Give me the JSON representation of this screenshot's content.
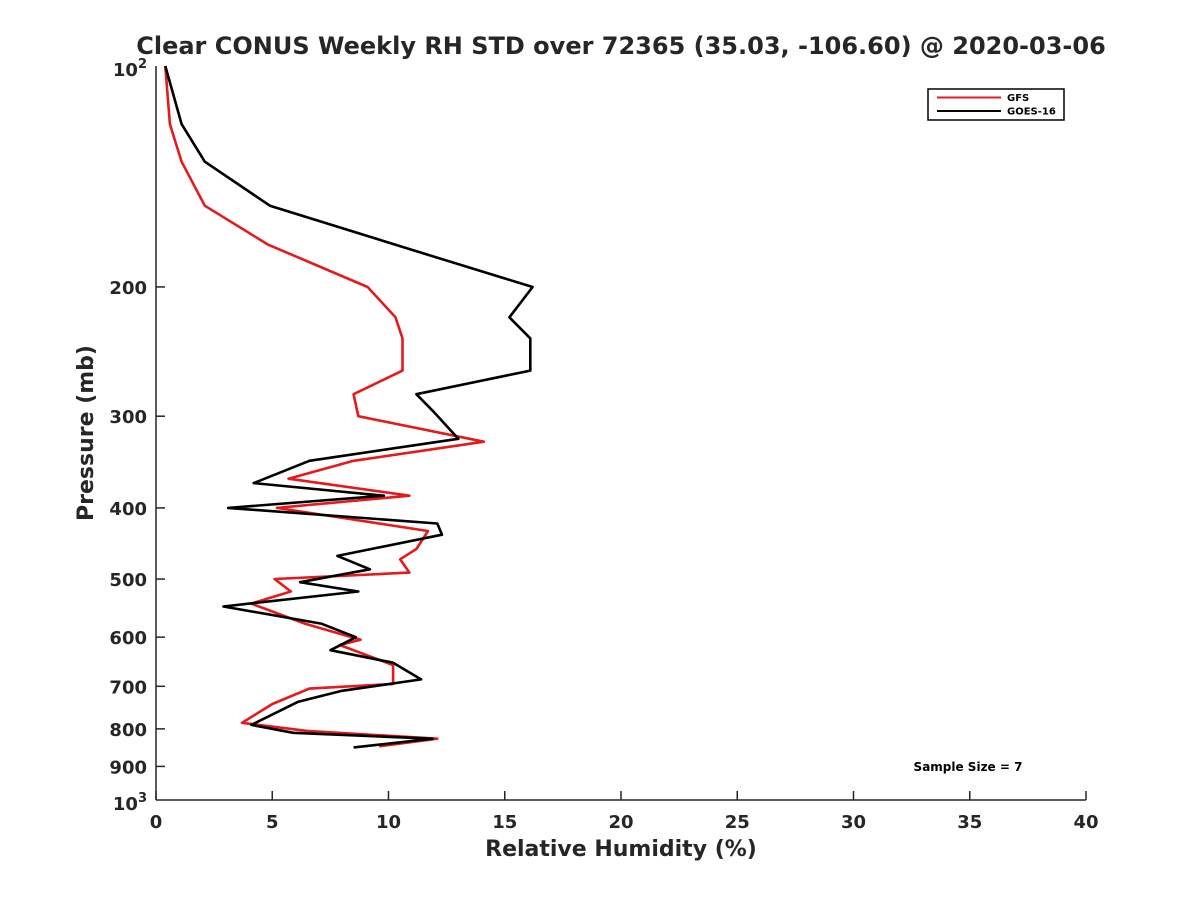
{
  "chart_data": {
    "type": "line",
    "title": "Clear CONUS Weekly RH STD over 72365 (35.03, -106.60) @ 2020-03-06",
    "xlabel": "Relative Humidity (%)",
    "ylabel": "Pressure (mb)",
    "xlim": [
      0,
      40
    ],
    "ylim": [
      100,
      1000
    ],
    "y_scale": "log",
    "y_reversed": true,
    "grid": false,
    "legend_position": "top-right",
    "x_ticks": [
      0,
      5,
      10,
      15,
      20,
      25,
      30,
      35,
      40
    ],
    "x_tick_labels": [
      "0",
      "5",
      "10",
      "15",
      "20",
      "25",
      "30",
      "35",
      "40"
    ],
    "y_ticks": [
      200,
      300,
      400,
      500,
      600,
      700,
      800,
      900
    ],
    "y_tick_labels": [
      "200",
      "300",
      "400",
      "500",
      "600",
      "700",
      "800",
      "900"
    ],
    "y_extreme_labels": [
      {
        "value": 100,
        "base": "10",
        "exp": "2"
      },
      {
        "value": 1000,
        "base": "10",
        "exp": "3"
      }
    ],
    "annotation": "Sample Size = 7",
    "series": [
      {
        "name": "GFS",
        "color": "#e41a1c",
        "points": [
          {
            "x": 0.4,
            "y": 100
          },
          {
            "x": 0.6,
            "y": 120
          },
          {
            "x": 1.1,
            "y": 135
          },
          {
            "x": 2.1,
            "y": 155
          },
          {
            "x": 4.8,
            "y": 175
          },
          {
            "x": 9.1,
            "y": 200
          },
          {
            "x": 10.3,
            "y": 220
          },
          {
            "x": 10.6,
            "y": 235
          },
          {
            "x": 10.6,
            "y": 260
          },
          {
            "x": 8.5,
            "y": 280
          },
          {
            "x": 8.7,
            "y": 300
          },
          {
            "x": 14.1,
            "y": 325
          },
          {
            "x": 8.5,
            "y": 345
          },
          {
            "x": 5.7,
            "y": 365
          },
          {
            "x": 10.9,
            "y": 385
          },
          {
            "x": 5.2,
            "y": 400
          },
          {
            "x": 11.7,
            "y": 430
          },
          {
            "x": 11.2,
            "y": 455
          },
          {
            "x": 10.5,
            "y": 470
          },
          {
            "x": 10.9,
            "y": 490
          },
          {
            "x": 5.1,
            "y": 500
          },
          {
            "x": 5.8,
            "y": 520
          },
          {
            "x": 4.1,
            "y": 540
          },
          {
            "x": 6.4,
            "y": 575
          },
          {
            "x": 8.8,
            "y": 605
          },
          {
            "x": 7.9,
            "y": 615
          },
          {
            "x": 10.2,
            "y": 655
          },
          {
            "x": 10.2,
            "y": 695
          },
          {
            "x": 6.6,
            "y": 705
          },
          {
            "x": 5.0,
            "y": 740
          },
          {
            "x": 3.7,
            "y": 785
          },
          {
            "x": 6.5,
            "y": 805
          },
          {
            "x": 12.1,
            "y": 825
          },
          {
            "x": 9.6,
            "y": 845
          }
        ]
      },
      {
        "name": "GOES-16",
        "color": "#000000",
        "points": [
          {
            "x": 0.4,
            "y": 100
          },
          {
            "x": 1.1,
            "y": 120
          },
          {
            "x": 2.1,
            "y": 135
          },
          {
            "x": 4.9,
            "y": 155
          },
          {
            "x": 11.5,
            "y": 180
          },
          {
            "x": 16.2,
            "y": 200
          },
          {
            "x": 15.2,
            "y": 220
          },
          {
            "x": 16.1,
            "y": 235
          },
          {
            "x": 16.1,
            "y": 260
          },
          {
            "x": 11.2,
            "y": 280
          },
          {
            "x": 11.9,
            "y": 295
          },
          {
            "x": 13.0,
            "y": 322
          },
          {
            "x": 6.6,
            "y": 345
          },
          {
            "x": 4.2,
            "y": 370
          },
          {
            "x": 9.8,
            "y": 385
          },
          {
            "x": 3.1,
            "y": 400
          },
          {
            "x": 12.1,
            "y": 420
          },
          {
            "x": 12.3,
            "y": 435
          },
          {
            "x": 7.8,
            "y": 465
          },
          {
            "x": 9.2,
            "y": 485
          },
          {
            "x": 6.2,
            "y": 505
          },
          {
            "x": 8.7,
            "y": 520
          },
          {
            "x": 2.9,
            "y": 545
          },
          {
            "x": 7.1,
            "y": 575
          },
          {
            "x": 8.6,
            "y": 600
          },
          {
            "x": 7.5,
            "y": 625
          },
          {
            "x": 10.2,
            "y": 650
          },
          {
            "x": 11.4,
            "y": 685
          },
          {
            "x": 8.0,
            "y": 710
          },
          {
            "x": 6.1,
            "y": 735
          },
          {
            "x": 4.1,
            "y": 790
          },
          {
            "x": 5.9,
            "y": 810
          },
          {
            "x": 11.9,
            "y": 825
          },
          {
            "x": 8.5,
            "y": 848
          }
        ]
      }
    ]
  }
}
